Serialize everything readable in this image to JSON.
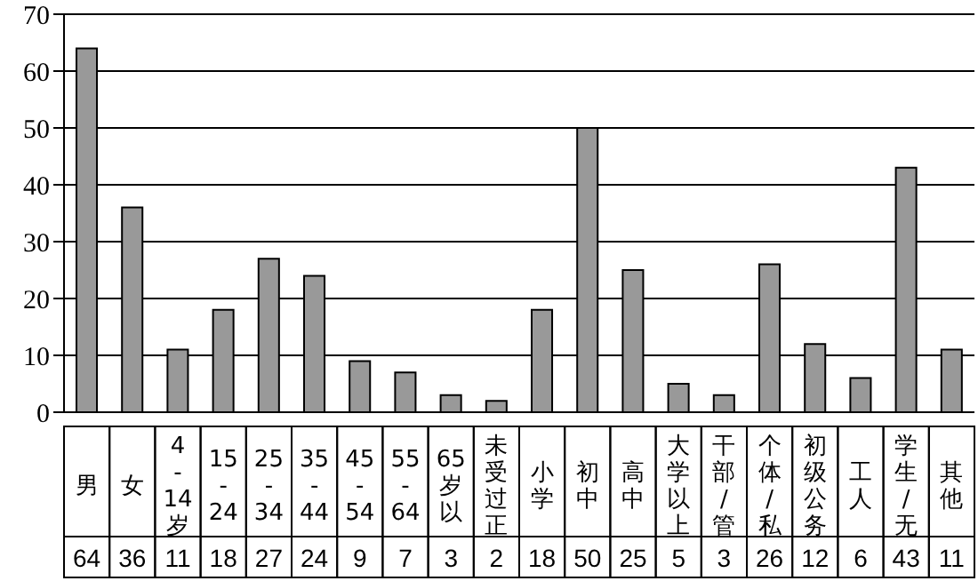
{
  "chart_data": {
    "type": "bar",
    "categories": [
      "男",
      "女",
      "4-14岁",
      "15-24",
      "25-34",
      "35-44",
      "45-54",
      "55-64",
      "65岁以",
      "未受过正",
      "小学",
      "初中",
      "高中",
      "大学以上",
      "干部/管",
      "个体/私",
      "初级公务",
      "工人",
      "学生/无",
      "其他"
    ],
    "values": [
      64,
      36,
      11,
      18,
      27,
      24,
      9,
      7,
      3,
      2,
      18,
      50,
      25,
      5,
      3,
      26,
      12,
      6,
      43,
      11
    ],
    "color": "#999999",
    "ylim": [
      0,
      70
    ],
    "yticks": [
      0,
      10,
      20,
      30,
      40,
      50,
      60,
      70
    ],
    "grid": "y",
    "data_labels": true
  }
}
